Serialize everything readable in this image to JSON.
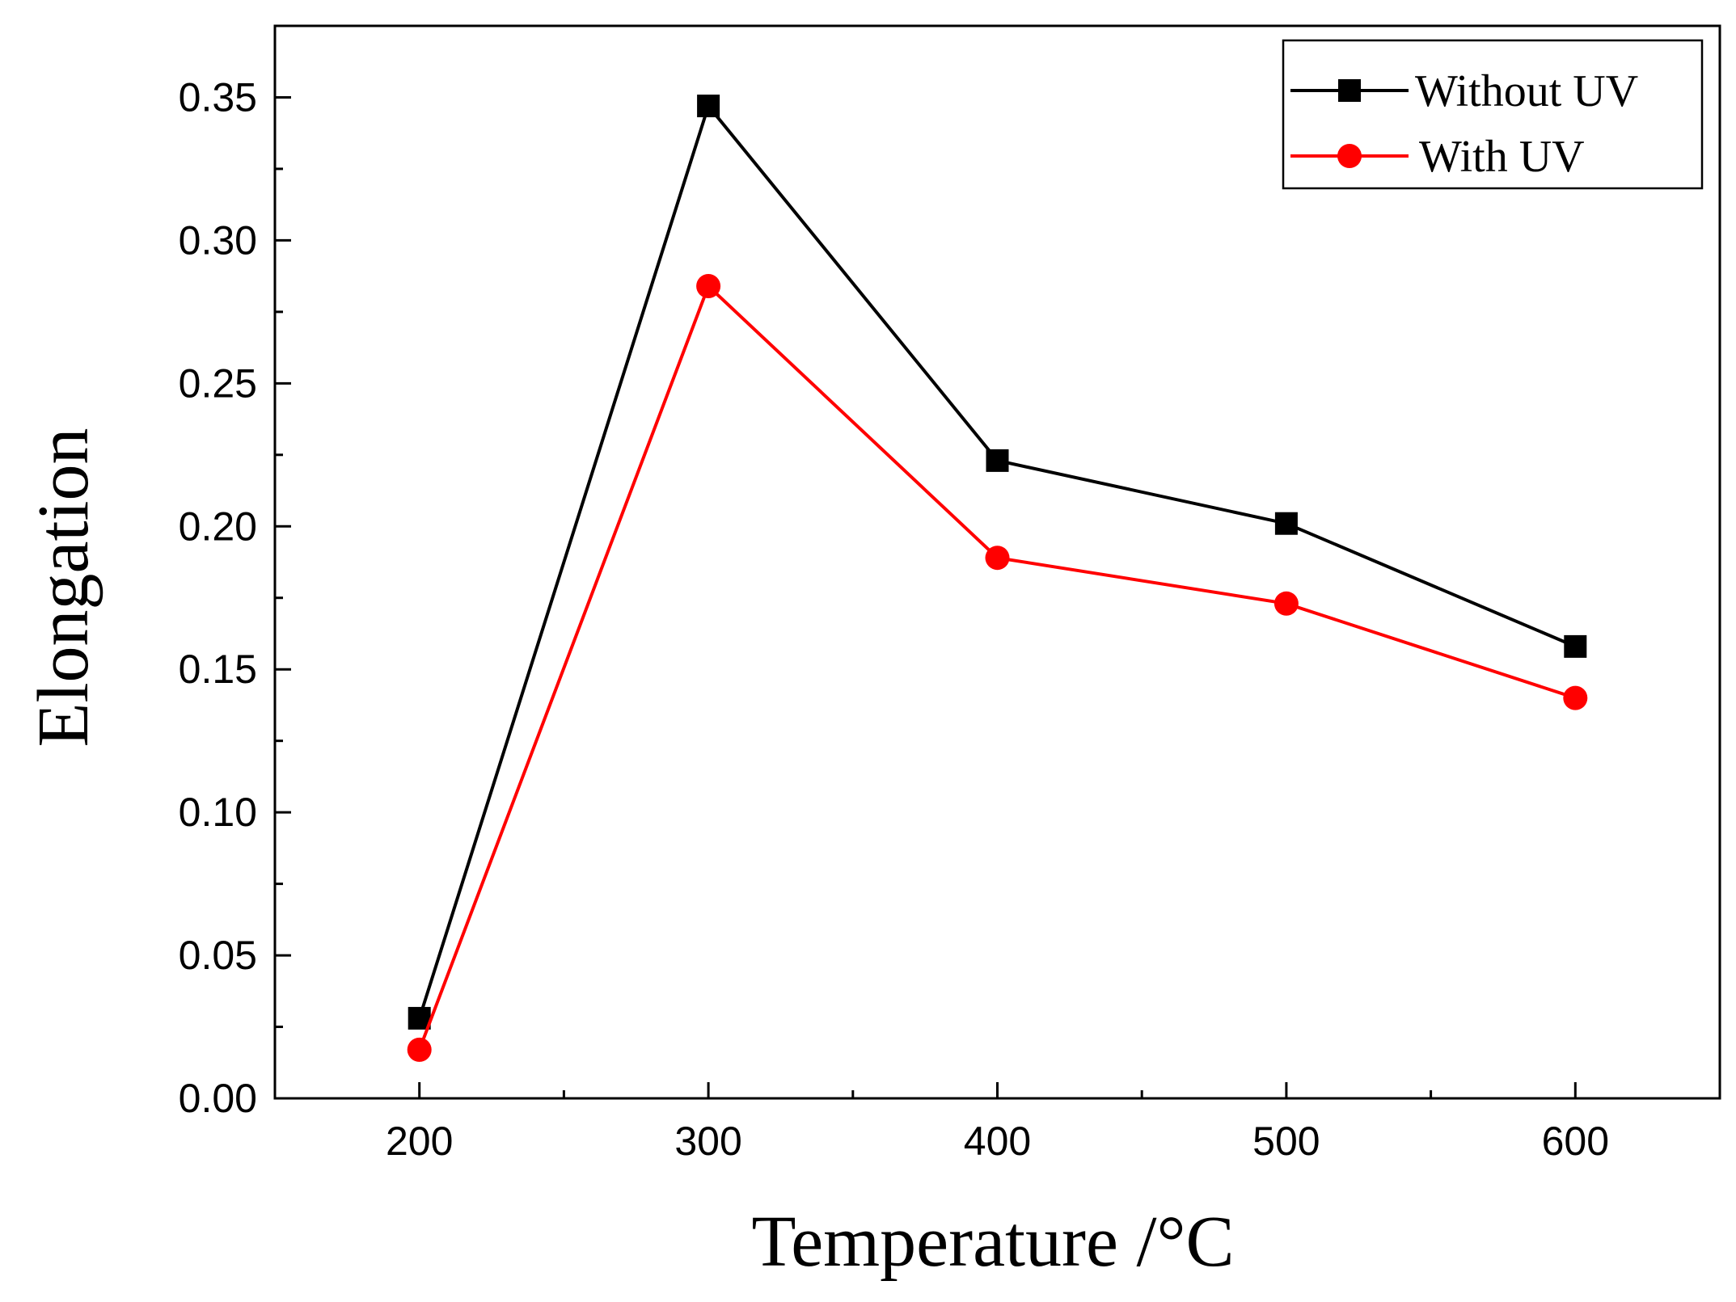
{
  "chart_data": {
    "type": "line",
    "title": "",
    "xlabel": "Temperature /°C",
    "ylabel": "Elongation",
    "x": [
      200,
      300,
      400,
      500,
      600
    ],
    "xlim": [
      150,
      650
    ],
    "ylim": [
      0,
      0.375
    ],
    "xticks": [
      "200",
      "300",
      "400",
      "500",
      "600"
    ],
    "yticks": [
      "0.00",
      "0.05",
      "0.10",
      "0.15",
      "0.20",
      "0.25",
      "0.30",
      "0.35"
    ],
    "grid": false,
    "legend_position": "top-right",
    "series": [
      {
        "name": "Without UV",
        "marker": "square",
        "color": "#000000",
        "values": [
          0.028,
          0.347,
          0.223,
          0.201,
          0.158
        ]
      },
      {
        "name": "With UV",
        "marker": "circle",
        "color": "#ff0000",
        "values": [
          0.017,
          0.284,
          0.189,
          0.173,
          0.14
        ]
      }
    ]
  }
}
